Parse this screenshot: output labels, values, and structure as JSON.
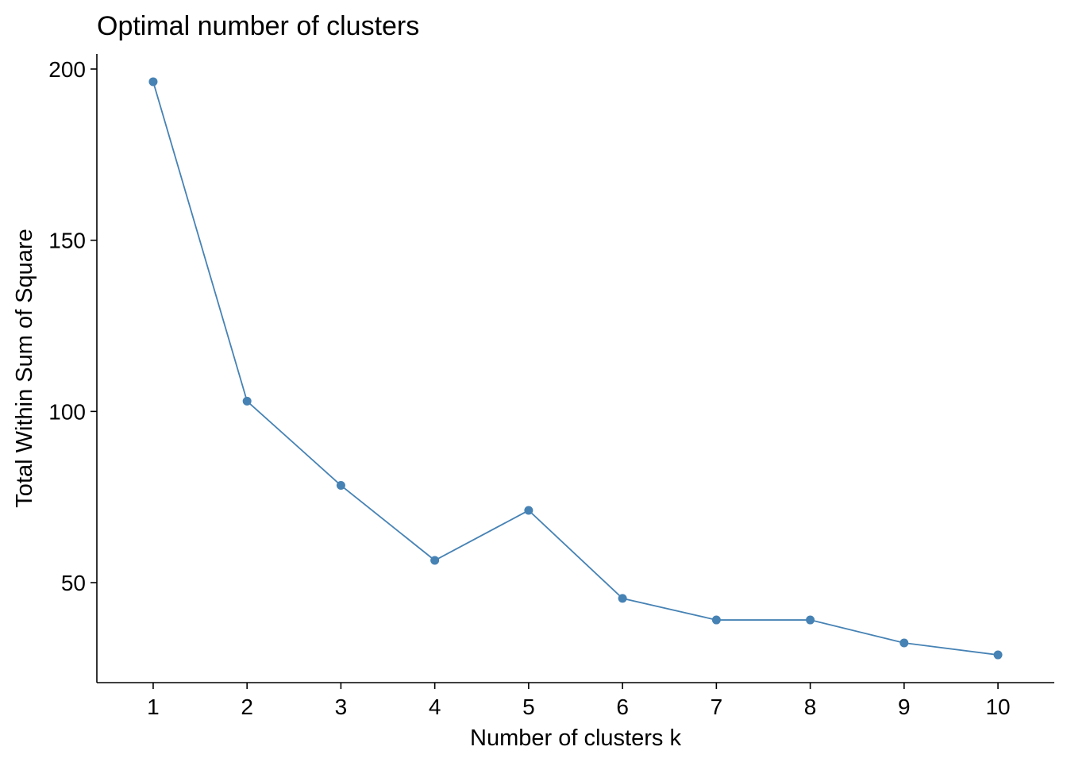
{
  "chart_data": {
    "type": "line",
    "title": "Optimal number of clusters",
    "xlabel": "Number of clusters k",
    "ylabel": "Total Within Sum of Square",
    "x": [
      1,
      2,
      3,
      4,
      5,
      6,
      7,
      8,
      9,
      10
    ],
    "x_tick_labels": [
      "1",
      "2",
      "3",
      "4",
      "5",
      "6",
      "7",
      "8",
      "9",
      "10"
    ],
    "y_ticks": [
      50,
      100,
      150,
      200
    ],
    "y_tick_labels": [
      "50",
      "100",
      "150",
      "200"
    ],
    "series": [
      {
        "values": [
          196.3,
          103.0,
          78.4,
          56.5,
          71.1,
          45.4,
          39.1,
          39.1,
          32.4,
          28.9
        ],
        "color": "#4682B4"
      }
    ],
    "xlim": [
      0.4,
      10.6
    ],
    "ylim": [
      20.8,
      204.4
    ],
    "grid": false,
    "markers": true
  }
}
